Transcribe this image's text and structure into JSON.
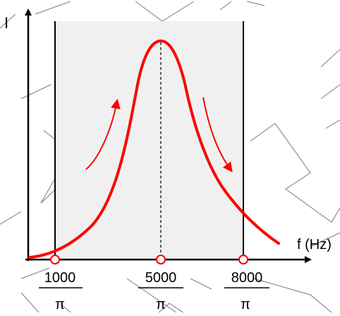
{
  "diagram": {
    "y_axis_label": "I",
    "x_axis_label": "f (Hz)",
    "ticks": [
      {
        "numerator": "1000",
        "denominator": "π"
      },
      {
        "numerator": "5000",
        "denominator": "π"
      },
      {
        "numerator": "8000",
        "denominator": "π"
      }
    ],
    "colors": {
      "curve": "#ff0000",
      "axis": "#000000",
      "band_fill": "#f0f0f0",
      "background_lines": "#7a7a7a",
      "marker_fill": "#ffffff"
    }
  }
}
